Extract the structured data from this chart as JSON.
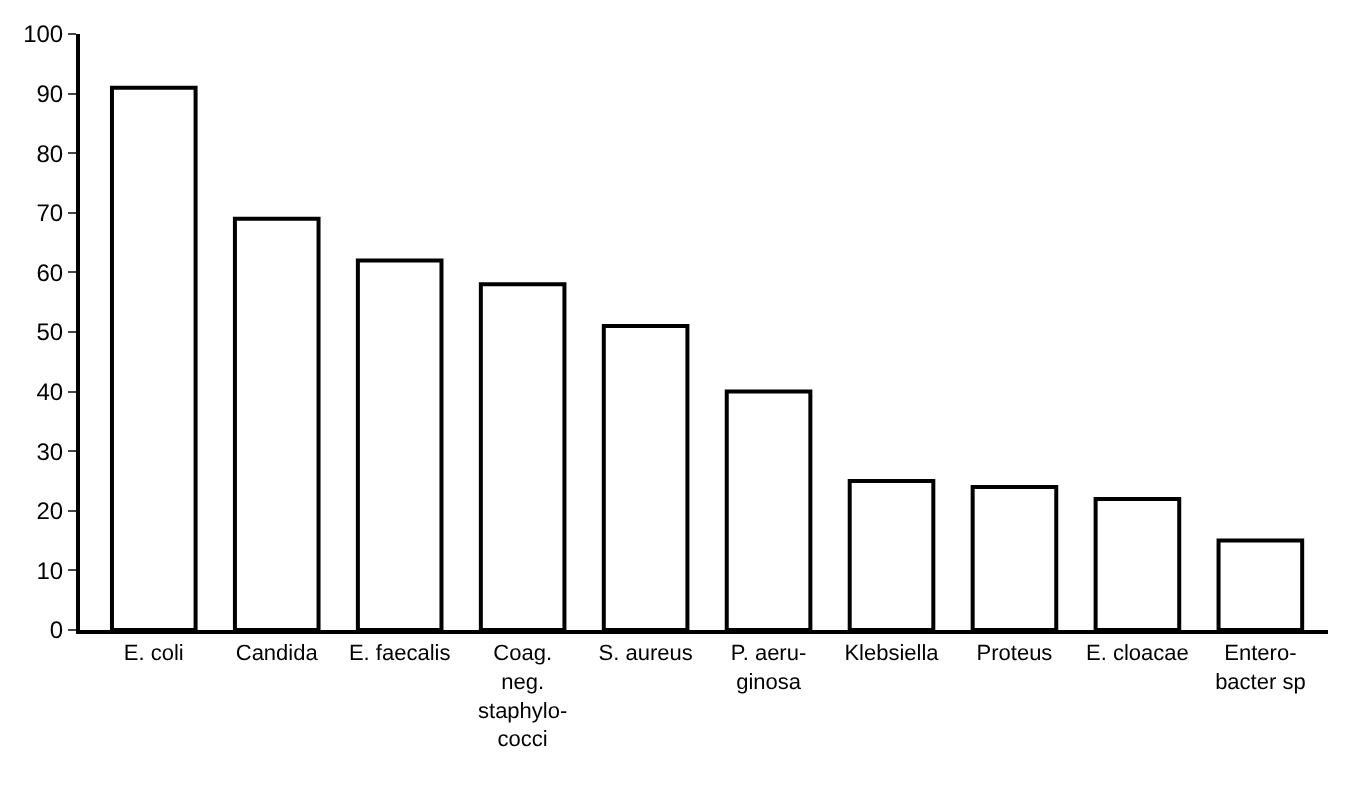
{
  "chart_data": {
    "type": "bar",
    "categories": [
      "E. coli",
      "Candida",
      "E. faecalis",
      "Coag.\nneg.\nstaphylo-\ncocci",
      "S. aureus",
      "P. aeru-\nginosa",
      "Klebsiella",
      "Proteus",
      "E. cloacae",
      "Entero-\nbacter sp"
    ],
    "values": [
      91,
      69,
      62,
      58,
      51,
      40,
      25,
      24,
      22,
      15
    ],
    "color": "#ffffff",
    "ylim": [
      0,
      100
    ],
    "yticks": [
      0,
      10,
      20,
      30,
      40,
      50,
      60,
      70,
      80,
      90,
      100
    ],
    "grid": false
  }
}
